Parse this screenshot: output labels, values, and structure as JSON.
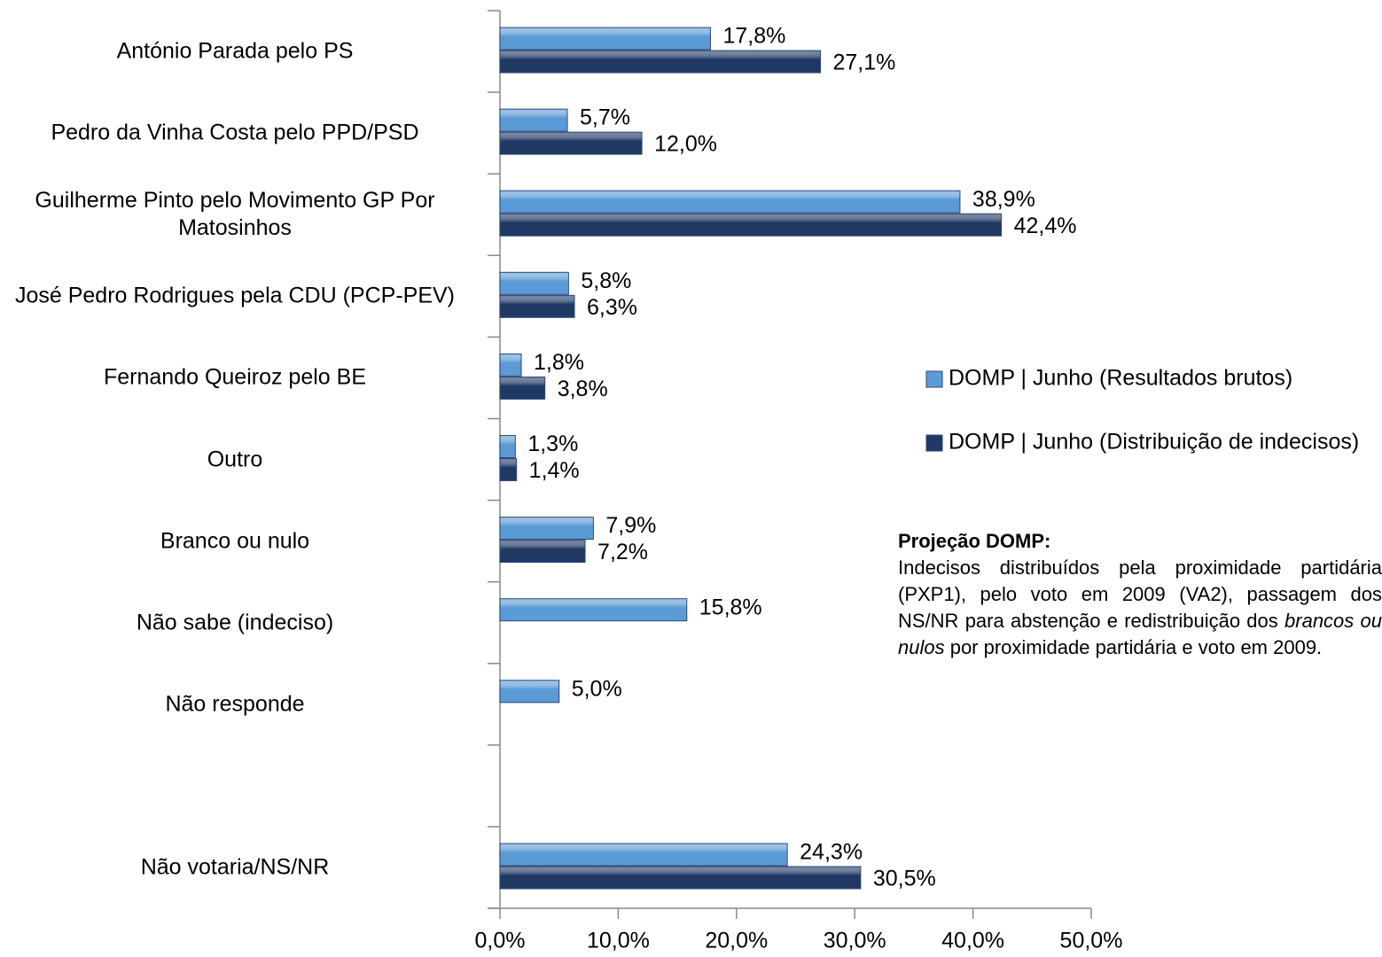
{
  "chart_data": {
    "type": "bar",
    "orientation": "horizontal",
    "categories": [
      "António Parada pelo PS",
      "Pedro da Vinha Costa pelo PPD/PSD",
      "Guilherme Pinto pelo Movimento GP Por Matosinhos",
      "José Pedro Rodrigues pela CDU (PCP-PEV)",
      "Fernando Queiroz pelo BE",
      "Outro",
      "Branco ou nulo",
      "Não sabe (indeciso)",
      "Não responde",
      null,
      "Não votaria/NS/NR"
    ],
    "series": [
      {
        "name": "DOMP | Junho (Resultados brutos)",
        "color": "#5b9bd5",
        "values": [
          17.8,
          5.7,
          38.9,
          5.8,
          1.8,
          1.3,
          7.9,
          15.8,
          5.0,
          null,
          24.3
        ],
        "value_labels": [
          "17,8%",
          "5,7%",
          "38,9%",
          "5,8%",
          "1,8%",
          "1,3%",
          "7,9%",
          "15,8%",
          "5,0%",
          null,
          "24,3%"
        ]
      },
      {
        "name": "DOMP | Junho (Distribuição de indecisos)",
        "color": "#1f3864",
        "values": [
          27.1,
          12.0,
          42.4,
          6.3,
          3.8,
          1.4,
          7.2,
          null,
          null,
          null,
          30.5
        ],
        "value_labels": [
          "27,1%",
          "12,0%",
          "42,4%",
          "6,3%",
          "3,8%",
          "1,4%",
          "7,2%",
          null,
          null,
          null,
          "30,5%"
        ]
      }
    ],
    "xlim": [
      0,
      50
    ],
    "xticks": [
      {
        "value": 0,
        "label": "0,0%"
      },
      {
        "value": 10,
        "label": "10,0%"
      },
      {
        "value": 20,
        "label": "20,0%"
      },
      {
        "value": 30,
        "label": "30,0%"
      },
      {
        "value": 40,
        "label": "40,0%"
      },
      {
        "value": 50,
        "label": "50,0%"
      }
    ],
    "legend": "right",
    "annotation": {
      "title": "Projeção DOMP:",
      "body": [
        "Indecisos distribuídos pela proximidade partidária (PXP1), pelo voto em 2009 (VA2), passagem dos NS/NR para abstenção e redistribuição dos ",
        "brancos ou nulos",
        " por proximidade partidária e voto em 2009."
      ]
    }
  }
}
